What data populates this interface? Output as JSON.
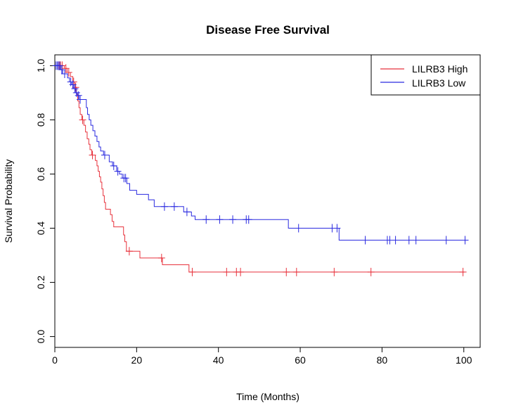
{
  "chart_data": {
    "type": "line",
    "step": true,
    "title": "Disease Free Survival",
    "xlabel": "Time (Months)",
    "ylabel": "Survival Probability",
    "xlim": [
      0,
      104
    ],
    "ylim": [
      -0.04,
      1.04
    ],
    "xticks": [
      0,
      20,
      40,
      60,
      80,
      100
    ],
    "xtick_labels": [
      "0",
      "20",
      "40",
      "60",
      "80",
      "100"
    ],
    "yticks": [
      0.0,
      0.2,
      0.4,
      0.6,
      0.8,
      1.0
    ],
    "ytick_labels": [
      "0.0",
      "0.2",
      "0.4",
      "0.6",
      "0.8",
      "1.0"
    ],
    "grid": false,
    "legend_position": "top-right",
    "series": [
      {
        "name": "LILRB3 High",
        "color": "#e8323c",
        "steps": [
          [
            0,
            1.0
          ],
          [
            2.3,
            0.99
          ],
          [
            3.0,
            0.975
          ],
          [
            3.8,
            0.96
          ],
          [
            4.4,
            0.94
          ],
          [
            4.9,
            0.92
          ],
          [
            5.3,
            0.895
          ],
          [
            5.6,
            0.87
          ],
          [
            5.9,
            0.845
          ],
          [
            6.2,
            0.82
          ],
          [
            6.6,
            0.8
          ],
          [
            7.1,
            0.78
          ],
          [
            7.5,
            0.755
          ],
          [
            7.9,
            0.73
          ],
          [
            8.3,
            0.71
          ],
          [
            8.6,
            0.69
          ],
          [
            9.0,
            0.67
          ],
          [
            9.9,
            0.65
          ],
          [
            10.3,
            0.63
          ],
          [
            10.6,
            0.61
          ],
          [
            10.9,
            0.59
          ],
          [
            11.2,
            0.57
          ],
          [
            11.5,
            0.545
          ],
          [
            11.8,
            0.52
          ],
          [
            12.1,
            0.495
          ],
          [
            12.4,
            0.47
          ],
          [
            13.6,
            0.45
          ],
          [
            14.0,
            0.425
          ],
          [
            14.4,
            0.405
          ],
          [
            16.8,
            0.375
          ],
          [
            17.1,
            0.35
          ],
          [
            17.5,
            0.315
          ],
          [
            20.8,
            0.29
          ],
          [
            26.3,
            0.265
          ],
          [
            32.8,
            0.238
          ],
          [
            100.2,
            0.238
          ]
        ],
        "censored": [
          [
            1.0,
            1.0
          ],
          [
            1.4,
            1.0
          ],
          [
            1.8,
            1.0
          ],
          [
            2.7,
            0.99
          ],
          [
            3.4,
            0.975
          ],
          [
            4.6,
            0.94
          ],
          [
            5.1,
            0.92
          ],
          [
            6.8,
            0.8
          ],
          [
            9.2,
            0.67
          ],
          [
            18.2,
            0.315
          ],
          [
            26.1,
            0.29
          ],
          [
            33.6,
            0.238
          ],
          [
            42.0,
            0.238
          ],
          [
            44.4,
            0.238
          ],
          [
            45.4,
            0.238
          ],
          [
            56.6,
            0.238
          ],
          [
            59.1,
            0.238
          ],
          [
            68.3,
            0.238
          ],
          [
            77.3,
            0.238
          ],
          [
            99.8,
            0.238
          ]
        ]
      },
      {
        "name": "LILRB3 Low",
        "color": "#2a2ae0",
        "steps": [
          [
            0,
            1.0
          ],
          [
            1.4,
            0.985
          ],
          [
            1.9,
            0.97
          ],
          [
            3.1,
            0.955
          ],
          [
            3.6,
            0.94
          ],
          [
            4.1,
            0.93
          ],
          [
            4.6,
            0.915
          ],
          [
            5.0,
            0.9
          ],
          [
            5.5,
            0.89
          ],
          [
            5.9,
            0.875
          ],
          [
            7.7,
            0.845
          ],
          [
            8.0,
            0.82
          ],
          [
            8.4,
            0.8
          ],
          [
            8.8,
            0.78
          ],
          [
            9.3,
            0.76
          ],
          [
            9.8,
            0.74
          ],
          [
            10.3,
            0.72
          ],
          [
            10.8,
            0.7
          ],
          [
            11.2,
            0.685
          ],
          [
            11.9,
            0.67
          ],
          [
            13.3,
            0.645
          ],
          [
            14.1,
            0.63
          ],
          [
            15.1,
            0.61
          ],
          [
            15.8,
            0.6
          ],
          [
            16.5,
            0.585
          ],
          [
            17.6,
            0.565
          ],
          [
            18.3,
            0.54
          ],
          [
            20.0,
            0.525
          ],
          [
            22.9,
            0.505
          ],
          [
            24.3,
            0.48
          ],
          [
            31.5,
            0.46
          ],
          [
            33.4,
            0.445
          ],
          [
            34.3,
            0.432
          ],
          [
            57.1,
            0.4
          ],
          [
            69.5,
            0.356
          ],
          [
            100.8,
            0.356
          ]
        ],
        "censored": [
          [
            0.3,
            1.0
          ],
          [
            0.6,
            1.0
          ],
          [
            0.9,
            1.0
          ],
          [
            1.2,
            1.0
          ],
          [
            1.7,
            0.985
          ],
          [
            2.4,
            0.97
          ],
          [
            3.9,
            0.94
          ],
          [
            4.4,
            0.93
          ],
          [
            4.9,
            0.915
          ],
          [
            5.3,
            0.9
          ],
          [
            5.8,
            0.89
          ],
          [
            6.2,
            0.875
          ],
          [
            12.2,
            0.67
          ],
          [
            14.4,
            0.63
          ],
          [
            15.4,
            0.61
          ],
          [
            16.9,
            0.585
          ],
          [
            17.3,
            0.585
          ],
          [
            26.8,
            0.48
          ],
          [
            29.2,
            0.48
          ],
          [
            32.3,
            0.46
          ],
          [
            37.0,
            0.432
          ],
          [
            40.3,
            0.432
          ],
          [
            43.5,
            0.432
          ],
          [
            46.8,
            0.432
          ],
          [
            47.4,
            0.432
          ],
          [
            59.6,
            0.4
          ],
          [
            67.8,
            0.4
          ],
          [
            69.0,
            0.4
          ],
          [
            75.9,
            0.356
          ],
          [
            81.3,
            0.356
          ],
          [
            81.9,
            0.356
          ],
          [
            83.3,
            0.356
          ],
          [
            86.6,
            0.356
          ],
          [
            88.3,
            0.356
          ],
          [
            95.7,
            0.356
          ],
          [
            100.3,
            0.356
          ]
        ]
      }
    ]
  }
}
